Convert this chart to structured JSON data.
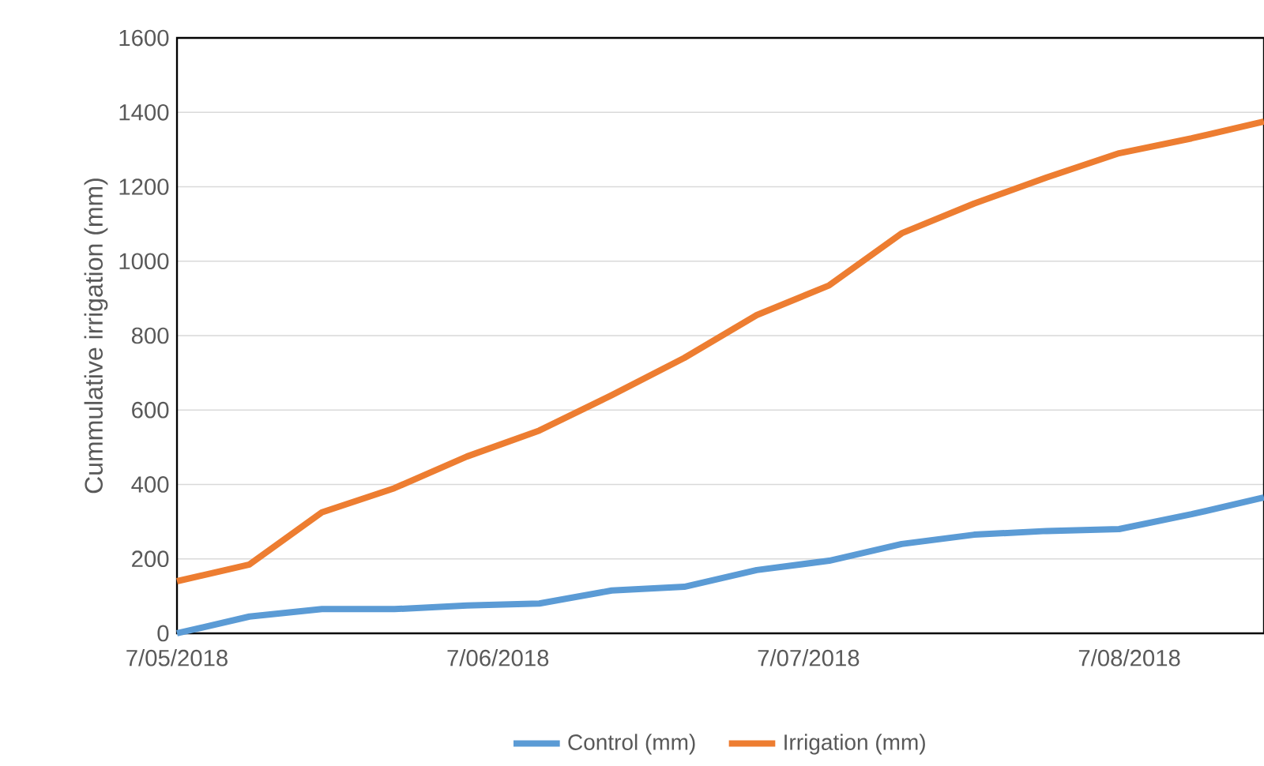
{
  "chart_data": {
    "type": "line",
    "ylabel": "Cummulative irrigation (mm)",
    "x": [
      "2018-05-07",
      "2018-05-14",
      "2018-05-21",
      "2018-05-28",
      "2018-06-04",
      "2018-06-11",
      "2018-06-18",
      "2018-06-25",
      "2018-07-02",
      "2018-07-09",
      "2018-07-16",
      "2018-07-23",
      "2018-07-30",
      "2018-08-06",
      "2018-08-13",
      "2018-08-20"
    ],
    "series": [
      {
        "name": "Control (mm)",
        "color": "#5b9bd5",
        "values": [
          0,
          45,
          65,
          65,
          75,
          80,
          115,
          125,
          170,
          195,
          240,
          265,
          275,
          280,
          320,
          365
        ]
      },
      {
        "name": "Irrigation (mm)",
        "color": "#ed7d31",
        "values": [
          140,
          185,
          325,
          390,
          475,
          545,
          640,
          740,
          855,
          935,
          1075,
          1155,
          1225,
          1290,
          1330,
          1375
        ]
      }
    ],
    "xlim": [
      "2018-05-07",
      "2018-08-20"
    ],
    "xticks": [
      {
        "value": "2018-05-07",
        "label": "7/05/2018"
      },
      {
        "value": "2018-06-07",
        "label": "7/06/2018"
      },
      {
        "value": "2018-07-07",
        "label": "7/07/2018"
      },
      {
        "value": "2018-08-07",
        "label": "7/08/2018"
      }
    ],
    "ylim": [
      0,
      1600
    ],
    "yticks": [
      0,
      200,
      400,
      600,
      800,
      1000,
      1200,
      1400,
      1600
    ],
    "grid": "y",
    "legend": "bottom",
    "marker": "none",
    "line_style": "solid"
  }
}
